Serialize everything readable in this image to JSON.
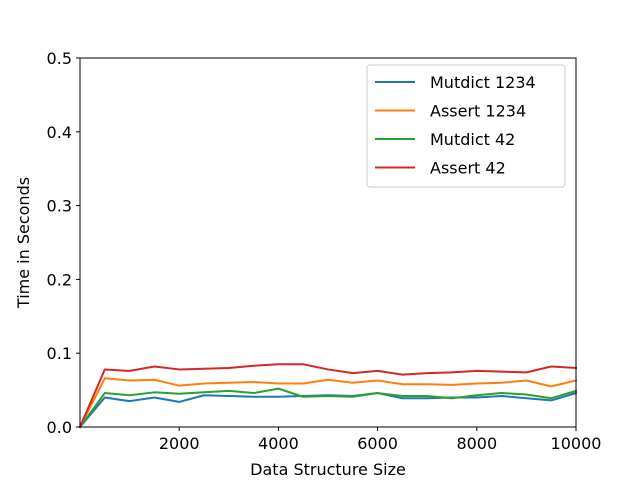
{
  "chart_data": {
    "type": "line",
    "title": "",
    "xlabel": "Data Structure Size",
    "ylabel": "Time in Seconds",
    "xlim": [
      0,
      10000
    ],
    "ylim": [
      0,
      0.5
    ],
    "x_ticks": [
      2000,
      4000,
      6000,
      8000,
      10000
    ],
    "x_tick_labels": [
      "2000",
      "4000",
      "6000",
      "8000",
      "10000"
    ],
    "y_ticks": [
      0.0,
      0.1,
      0.2,
      0.3,
      0.4,
      0.5
    ],
    "y_tick_labels": [
      "0.0",
      "0.1",
      "0.2",
      "0.3",
      "0.4",
      "0.5"
    ],
    "grid": false,
    "legend_position": "top-right",
    "x": [
      0,
      500,
      1000,
      1500,
      2000,
      2500,
      3000,
      3500,
      4000,
      4500,
      5000,
      5500,
      6000,
      6500,
      7000,
      7500,
      8000,
      8500,
      9000,
      9500,
      10000
    ],
    "series": [
      {
        "name": "Mutdict 1234",
        "color": "#1f77b4",
        "values": [
          0.0,
          0.04,
          0.035,
          0.04,
          0.034,
          0.043,
          0.042,
          0.041,
          0.041,
          0.042,
          0.043,
          0.042,
          0.046,
          0.039,
          0.039,
          0.04,
          0.04,
          0.042,
          0.039,
          0.036,
          0.046
        ]
      },
      {
        "name": "Assert 1234",
        "color": "#ff7f0e",
        "values": [
          0.0,
          0.066,
          0.063,
          0.064,
          0.056,
          0.059,
          0.06,
          0.061,
          0.059,
          0.059,
          0.064,
          0.06,
          0.063,
          0.058,
          0.058,
          0.057,
          0.059,
          0.06,
          0.063,
          0.055,
          0.063
        ]
      },
      {
        "name": "Mutdict 42",
        "color": "#2ca02c",
        "values": [
          0.0,
          0.046,
          0.043,
          0.047,
          0.045,
          0.047,
          0.049,
          0.046,
          0.052,
          0.041,
          0.042,
          0.041,
          0.046,
          0.042,
          0.042,
          0.039,
          0.043,
          0.046,
          0.044,
          0.039,
          0.049
        ]
      },
      {
        "name": "Assert 42",
        "color": "#d62728",
        "values": [
          0.0,
          0.078,
          0.076,
          0.082,
          0.078,
          0.079,
          0.08,
          0.083,
          0.085,
          0.085,
          0.078,
          0.073,
          0.076,
          0.071,
          0.073,
          0.074,
          0.076,
          0.075,
          0.074,
          0.082,
          0.08
        ]
      }
    ]
  }
}
